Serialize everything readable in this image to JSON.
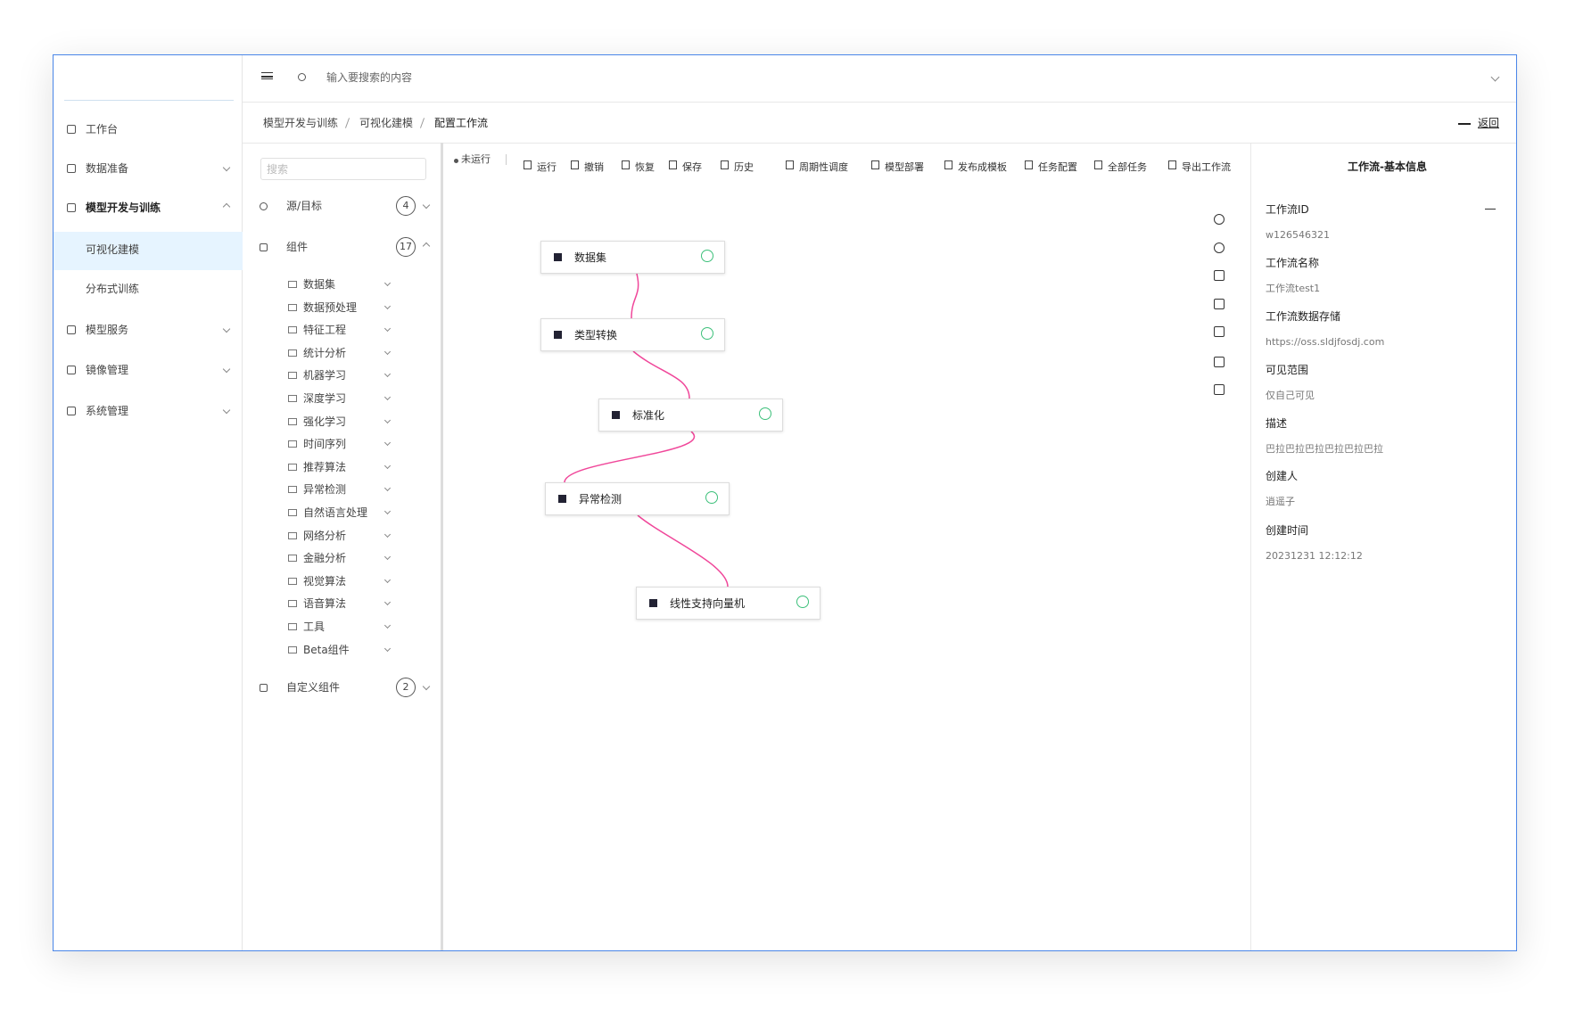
{
  "sidebar": {
    "items": [
      "工作台",
      "数据准备",
      "模型开发与训练",
      "可视化建模",
      "分布式训练",
      "模型服务",
      "镜像管理",
      "系统管理"
    ]
  },
  "topbar": {
    "search_placeholder": "输入要搜索的内容"
  },
  "breadcrumb": {
    "items": [
      "模型开发与训练",
      "可视化建模",
      "配置工作流"
    ],
    "back": "返回"
  },
  "left_panel": {
    "search_placeholder": "搜索",
    "sections": [
      {
        "label": "源/目标",
        "count": 4
      },
      {
        "label": "组件",
        "count": 17
      },
      {
        "label": "自定义组件",
        "count": 2
      }
    ],
    "folders": [
      "数据集",
      "数据预处理",
      "特征工程",
      "统计分析",
      "机器学习",
      "深度学习",
      "强化学习",
      "时间序列",
      "推荐算法",
      "异常检测",
      "自然语言处理",
      "网络分析",
      "金融分析",
      "视觉算法",
      "语音算法",
      "工具",
      "Beta组件"
    ]
  },
  "toolbar": {
    "status": "未运行",
    "buttons": [
      "运行",
      "撤销",
      "恢复",
      "保存",
      "历史",
      "周期性调度",
      "模型部署",
      "发布成模板",
      "任务配置",
      "全部任务",
      "导出工作流"
    ]
  },
  "canvas": {
    "nodes": [
      "数据集",
      "类型转换",
      "标准化",
      "异常检测",
      "线性支持向量机"
    ]
  },
  "info_panel": {
    "title": "工作流-基本信息",
    "fields": [
      {
        "label": "工作流ID",
        "value": "w126546321"
      },
      {
        "label": "工作流名称",
        "value": "工作流test1"
      },
      {
        "label": "工作流数据存储",
        "value": "https://oss.sldjfosdj.com"
      },
      {
        "label": "可见范围",
        "value": "仅自己可见"
      },
      {
        "label": "描述",
        "value": "巴拉巴拉巴拉巴拉巴拉巴拉"
      },
      {
        "label": "创建人",
        "value": "逍遥子"
      },
      {
        "label": "创建时间",
        "value": "20231231 12:12:12"
      }
    ]
  }
}
